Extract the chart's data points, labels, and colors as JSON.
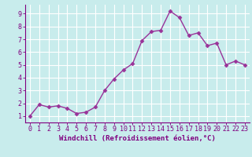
{
  "x": [
    0,
    1,
    2,
    3,
    4,
    5,
    6,
    7,
    8,
    9,
    10,
    11,
    12,
    13,
    14,
    15,
    16,
    17,
    18,
    19,
    20,
    21,
    22,
    23
  ],
  "y": [
    1.0,
    1.9,
    1.7,
    1.8,
    1.6,
    1.2,
    1.3,
    1.7,
    3.0,
    3.9,
    4.6,
    5.1,
    6.9,
    7.6,
    7.7,
    9.2,
    8.7,
    7.3,
    7.5,
    6.5,
    6.7,
    5.0,
    5.3,
    5.0
  ],
  "line_color": "#993399",
  "marker": "D",
  "marker_size": 2.5,
  "bg_color": "#c8ecec",
  "grid_color": "#ffffff",
  "xlabel": "Windchill (Refroidissement éolien,°C)",
  "ylim": [
    0.5,
    9.7
  ],
  "xlim": [
    -0.5,
    23.5
  ],
  "yticks": [
    1,
    2,
    3,
    4,
    5,
    6,
    7,
    8,
    9
  ],
  "xticks": [
    0,
    1,
    2,
    3,
    4,
    5,
    6,
    7,
    8,
    9,
    10,
    11,
    12,
    13,
    14,
    15,
    16,
    17,
    18,
    19,
    20,
    21,
    22,
    23
  ],
  "tick_color": "#800080",
  "label_color": "#800080",
  "label_fontsize": 6.5,
  "tick_fontsize": 6.0,
  "spine_color": "#800080",
  "linewidth": 1.0
}
